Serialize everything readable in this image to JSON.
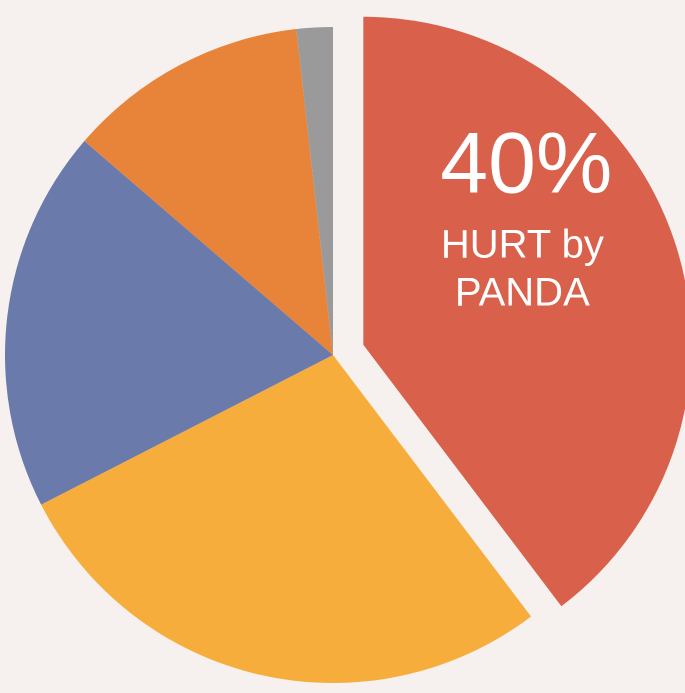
{
  "chart_data": {
    "type": "pie",
    "slices": [
      {
        "value": 40,
        "color": "#d9604a",
        "exploded": true,
        "label_value": "40%",
        "label_lines": [
          "HURT by",
          "PANDA"
        ]
      },
      {
        "value": 28,
        "color": "#f6ad3c"
      },
      {
        "value": 19,
        "color": "#6a7aab"
      },
      {
        "value": 12,
        "color": "#e8833a"
      },
      {
        "value": 1.8,
        "color": "#9a9a9a"
      }
    ]
  }
}
